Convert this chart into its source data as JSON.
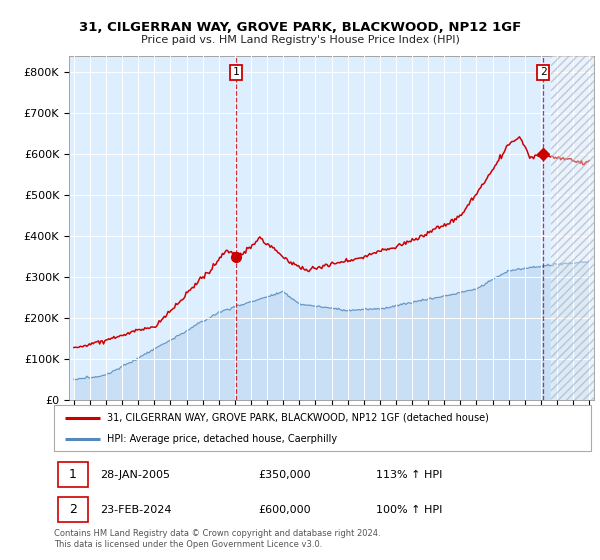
{
  "title1": "31, CILGERRAN WAY, GROVE PARK, BLACKWOOD, NP12 1GF",
  "title2": "Price paid vs. HM Land Registry's House Price Index (HPI)",
  "xlim_start": 1994.7,
  "xlim_end": 2027.3,
  "ylim": [
    0,
    840000
  ],
  "yticks": [
    0,
    100000,
    200000,
    300000,
    400000,
    500000,
    600000,
    700000,
    800000
  ],
  "ytick_labels": [
    "£0",
    "£100K",
    "£200K",
    "£300K",
    "£400K",
    "£500K",
    "£600K",
    "£700K",
    "£800K"
  ],
  "xticks": [
    1995,
    1996,
    1997,
    1998,
    1999,
    2000,
    2001,
    2002,
    2003,
    2004,
    2005,
    2006,
    2007,
    2008,
    2009,
    2010,
    2011,
    2012,
    2013,
    2014,
    2015,
    2016,
    2017,
    2018,
    2019,
    2020,
    2021,
    2022,
    2023,
    2024,
    2025,
    2026,
    2027
  ],
  "legend_line1": "31, CILGERRAN WAY, GROVE PARK, BLACKWOOD, NP12 1GF (detached house)",
  "legend_line2": "HPI: Average price, detached house, Caerphilly",
  "sale1_date": "28-JAN-2005",
  "sale1_price": "£350,000",
  "sale1_hpi": "113% ↑ HPI",
  "sale2_date": "23-FEB-2024",
  "sale2_price": "£600,000",
  "sale2_hpi": "100% ↑ HPI",
  "footer": "Contains HM Land Registry data © Crown copyright and database right 2024.\nThis data is licensed under the Open Government Licence v3.0.",
  "red_color": "#cc0000",
  "blue_color": "#5588bb",
  "bg_blue": "#ddeeff",
  "sale1_x": 2005.07,
  "sale1_y": 350000,
  "sale2_x": 2024.15,
  "sale2_y": 600000,
  "hatch_start": 2024.6
}
